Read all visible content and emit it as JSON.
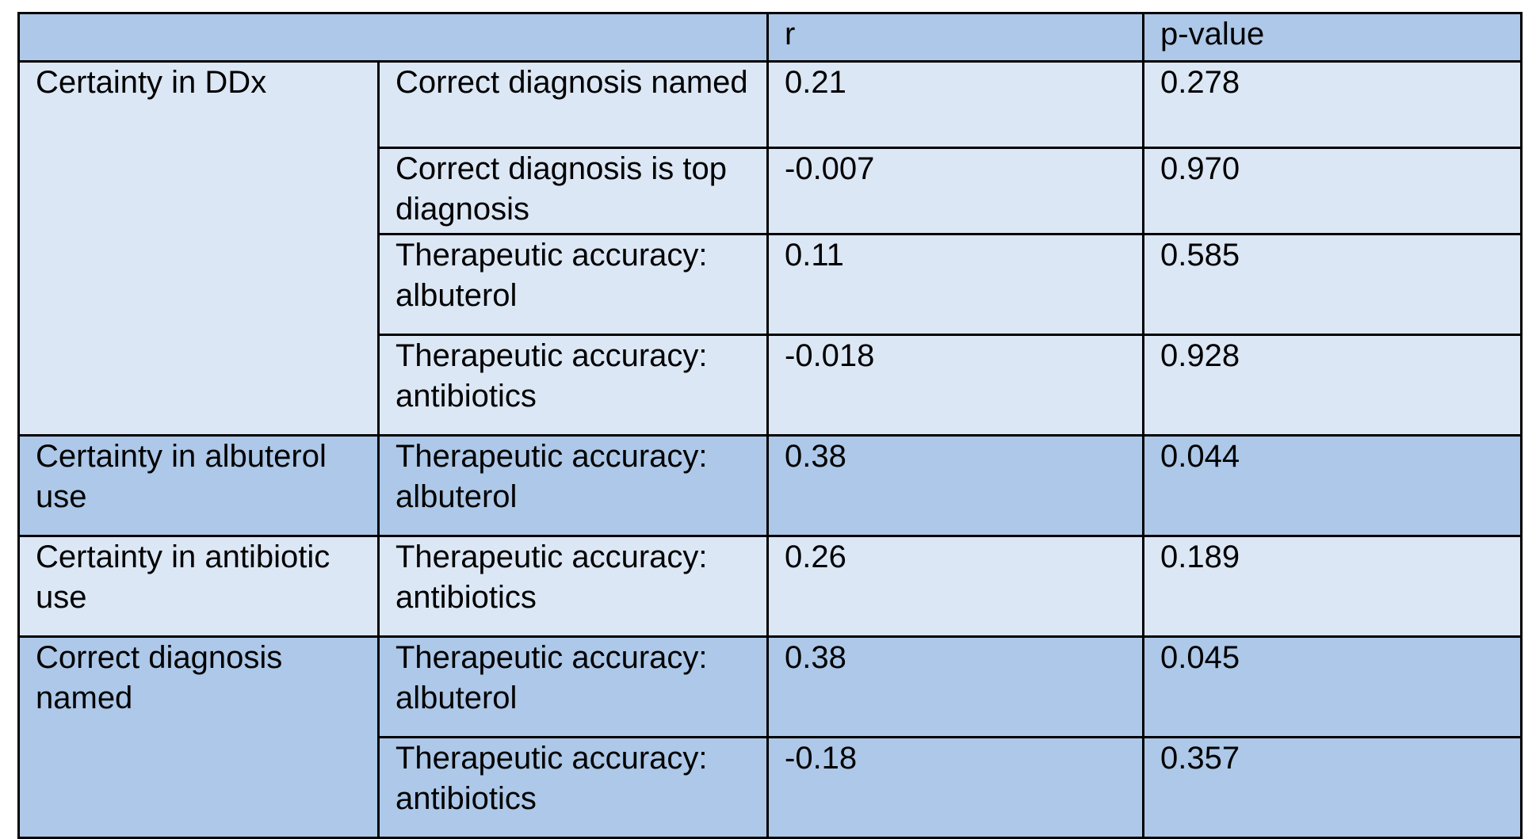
{
  "table": {
    "header": {
      "blank": "",
      "r": "r",
      "p": "p-value"
    },
    "groups": [
      {
        "label": "Certainty in DDx",
        "shade": "light",
        "rows": [
          {
            "measure": "Correct diagnosis named",
            "r": "0.21",
            "p": "0.278",
            "p_bold": false
          },
          {
            "measure": "Correct diagnosis is top diagnosis",
            "r": "-0.007",
            "p": "0.970",
            "p_bold": false
          },
          {
            "measure": "Therapeutic accuracy: albuterol",
            "r": "0.11",
            "p": "0.585",
            "p_bold": false
          },
          {
            "measure": "Therapeutic accuracy: antibiotics",
            "r": "-0.018",
            "p": "0.928",
            "p_bold": false
          }
        ]
      },
      {
        "label": "Certainty in albuterol use",
        "shade": "dark",
        "rows": [
          {
            "measure": "Therapeutic accuracy: albuterol",
            "r": "0.38",
            "p": "0.044",
            "p_bold": true
          }
        ]
      },
      {
        "label": "Certainty in antibiotic use",
        "shade": "light",
        "rows": [
          {
            "measure": "Therapeutic accuracy: antibiotics",
            "r": "0.26",
            "p": "0.189",
            "p_bold": false
          }
        ]
      },
      {
        "label": "Correct diagnosis named",
        "shade": "dark",
        "rows": [
          {
            "measure": "Therapeutic accuracy: albuterol",
            "r": "0.38",
            "p": "0.045",
            "p_bold": true
          },
          {
            "measure": "Therapeutic accuracy: antibiotics",
            "r": "-0.18",
            "p": "0.357",
            "p_bold": false
          }
        ]
      }
    ]
  },
  "colors": {
    "header_fill": "#adc8e8",
    "dark_fill": "#adc8e8",
    "light_fill": "#dce7f5",
    "border": "#000000"
  }
}
